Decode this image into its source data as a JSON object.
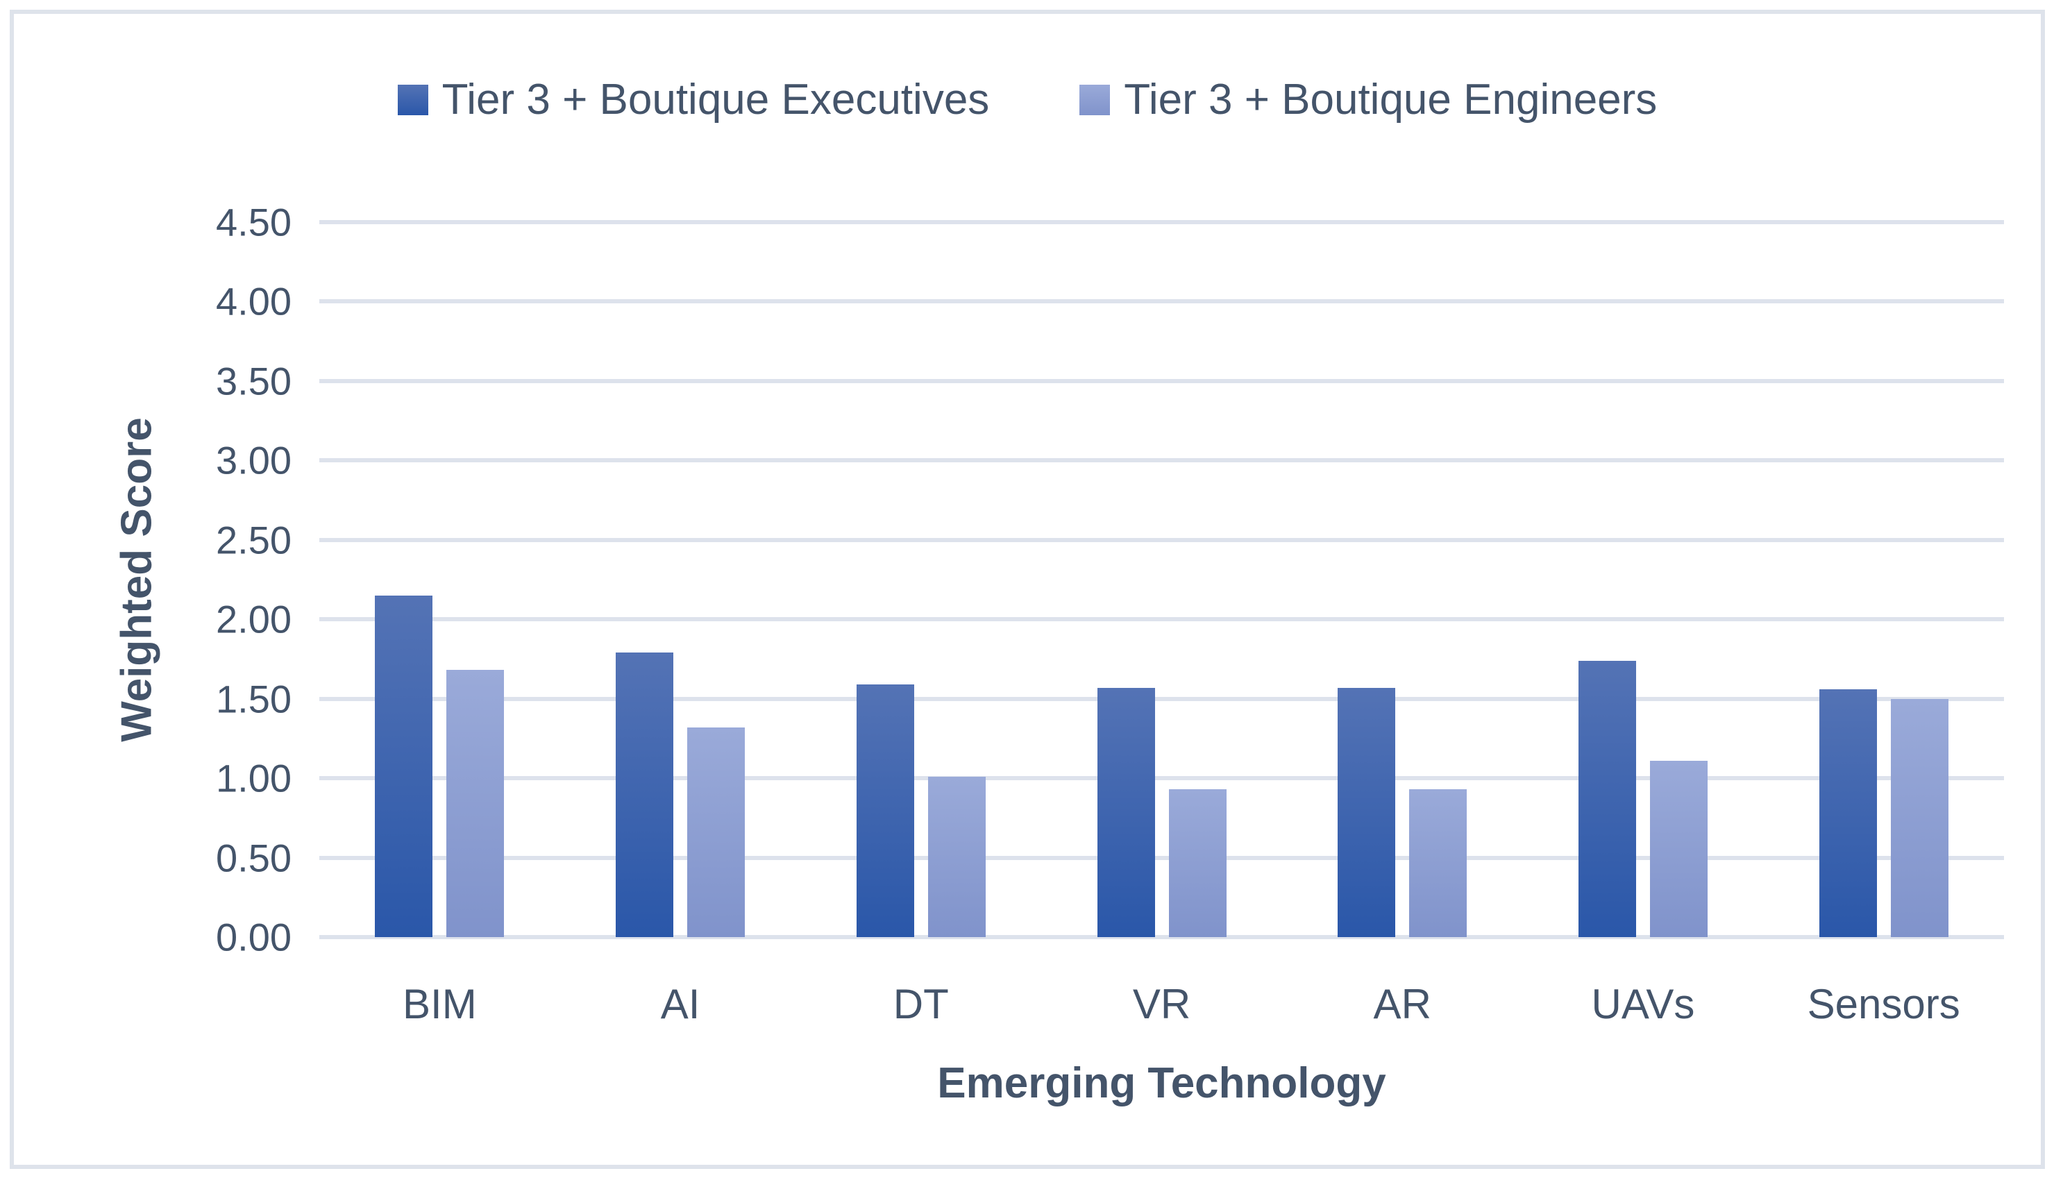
{
  "chart_data": {
    "type": "bar",
    "categories": [
      "BIM",
      "AI",
      "DT",
      "VR",
      "AR",
      "UAVs",
      "Sensors"
    ],
    "series": [
      {
        "name": "Tier 3 + Boutique Executives",
        "values": [
          2.15,
          1.79,
          1.59,
          1.57,
          1.57,
          1.74,
          1.56
        ],
        "color_top": "#5473B5",
        "color_bottom": "#2A57A9"
      },
      {
        "name": "Tier 3 + Boutique Engineers",
        "values": [
          1.68,
          1.32,
          1.01,
          0.93,
          0.93,
          1.11,
          1.5
        ],
        "color_top": "#9AAAD9",
        "color_bottom": "#8093CB"
      }
    ],
    "title": "",
    "xlabel": "Emerging Technology",
    "ylabel": "Weighted Score",
    "ylim": [
      0,
      4.5
    ],
    "ytick_step": 0.5,
    "ytick_labels": [
      "0.00",
      "0.50",
      "1.00",
      "1.50",
      "2.00",
      "2.50",
      "3.00",
      "3.50",
      "4.00",
      "4.50"
    ],
    "legend_position": "top",
    "grid": "horizontal",
    "gridline_color": "#DDE2EC",
    "axis_text_color": "#44546A",
    "frame_border_color": "#DEE3EB",
    "background_color": "#FFFFFF"
  }
}
